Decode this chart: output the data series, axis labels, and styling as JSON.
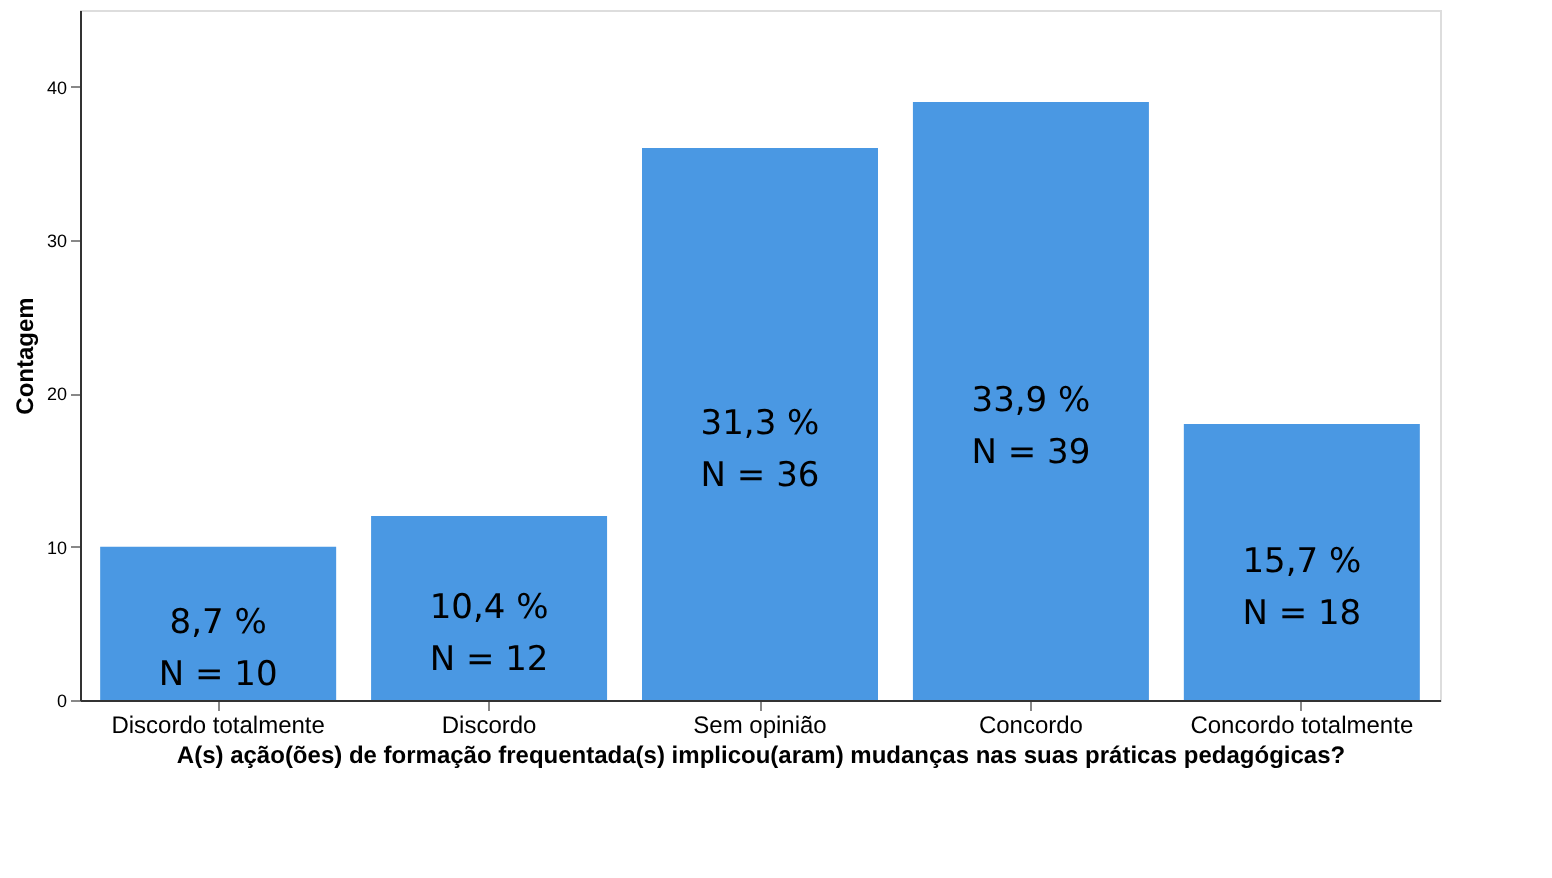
{
  "chart_data": {
    "type": "bar",
    "xlabel": "A(s) ação(ões) de formação frequentada(s) implicou(aram) mudanças nas suas práticas pedagógicas?",
    "ylabel": "Contagem",
    "categories": [
      "Discordo totalmente",
      "Discordo",
      "Sem opinião",
      "Concordo",
      "Concordo totalmente"
    ],
    "values": [
      10,
      12,
      36,
      39,
      18
    ],
    "value_labels": [
      "8,7 %\nN = 10",
      "10,4 %\nN = 12",
      "31,3 %\nN = 36",
      "33,9 %\nN = 39",
      "15,7 %\nN = 18"
    ],
    "color": "#4a98e3",
    "ylim": [
      0,
      45
    ],
    "yticks": [
      0,
      10,
      20,
      30,
      40
    ],
    "grid": false
  }
}
